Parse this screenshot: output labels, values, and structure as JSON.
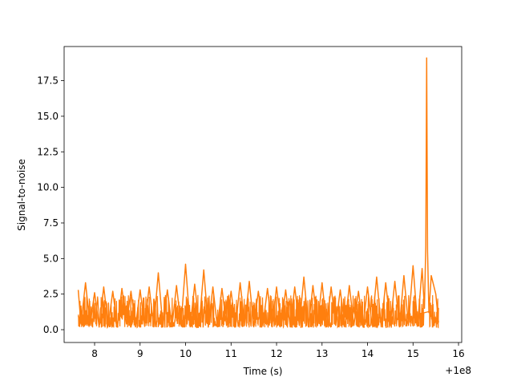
{
  "chart_data": {
    "type": "line",
    "title": "",
    "xlabel": "Time (s)",
    "ylabel": "Signal-to-noise",
    "x_offset_label": "+1e8",
    "xlim": [
      7.33,
      16.07
    ],
    "ylim": [
      -0.9,
      19.9
    ],
    "x_ticks": [
      8,
      9,
      10,
      11,
      12,
      13,
      14,
      15,
      16
    ],
    "x_tick_labels": [
      "8",
      "9",
      "10",
      "11",
      "12",
      "13",
      "14",
      "15",
      "16"
    ],
    "y_ticks": [
      0.0,
      2.5,
      5.0,
      7.5,
      10.0,
      12.5,
      15.0,
      17.5
    ],
    "y_tick_labels": [
      "0.0",
      "2.5",
      "5.0",
      "7.5",
      "10.0",
      "12.5",
      "15.0",
      "17.5"
    ],
    "grid": false,
    "legend": "none",
    "series": [
      {
        "color": "#ff7f0e",
        "x": [
          7.64,
          7.7,
          7.8,
          7.9,
          8.0,
          8.1,
          8.2,
          8.3,
          8.4,
          8.5,
          8.6,
          8.7,
          8.8,
          8.9,
          9.0,
          9.1,
          9.2,
          9.3,
          9.4,
          9.5,
          9.6,
          9.7,
          9.8,
          9.9,
          10.0,
          10.1,
          10.2,
          10.3,
          10.4,
          10.5,
          10.6,
          10.7,
          10.8,
          10.9,
          11.0,
          11.1,
          11.2,
          11.3,
          11.4,
          11.5,
          11.6,
          11.7,
          11.8,
          11.9,
          12.0,
          12.1,
          12.2,
          12.3,
          12.4,
          12.5,
          12.6,
          12.7,
          12.8,
          12.9,
          13.0,
          13.1,
          13.2,
          13.3,
          13.4,
          13.5,
          13.6,
          13.7,
          13.8,
          13.9,
          14.0,
          14.1,
          14.2,
          14.3,
          14.4,
          14.5,
          14.6,
          14.7,
          14.8,
          14.9,
          15.0,
          15.1,
          15.2,
          15.25,
          15.28,
          15.3,
          15.32,
          15.35,
          15.4,
          15.5,
          15.56
        ],
        "y": [
          2.8,
          0.4,
          3.3,
          0.3,
          2.6,
          0.2,
          3.0,
          0.3,
          2.7,
          0.2,
          2.9,
          0.4,
          2.7,
          0.2,
          2.8,
          0.3,
          3.0,
          0.2,
          4.0,
          0.3,
          2.8,
          0.2,
          3.1,
          0.3,
          4.6,
          0.2,
          3.2,
          0.3,
          4.2,
          0.2,
          3.0,
          0.2,
          2.9,
          0.3,
          2.7,
          0.2,
          3.3,
          0.3,
          3.4,
          0.2,
          2.7,
          0.3,
          2.9,
          0.2,
          3.0,
          0.3,
          2.8,
          0.2,
          3.0,
          0.3,
          3.7,
          0.2,
          3.1,
          0.3,
          3.3,
          0.2,
          3.0,
          0.3,
          2.8,
          0.2,
          3.1,
          0.3,
          2.7,
          0.2,
          3.0,
          0.3,
          3.7,
          0.2,
          3.3,
          0.3,
          3.4,
          0.2,
          3.8,
          0.3,
          4.5,
          0.3,
          4.3,
          1.5,
          5.9,
          19.1,
          5.5,
          1.2,
          3.8,
          2.5,
          0.5
        ]
      }
    ]
  }
}
